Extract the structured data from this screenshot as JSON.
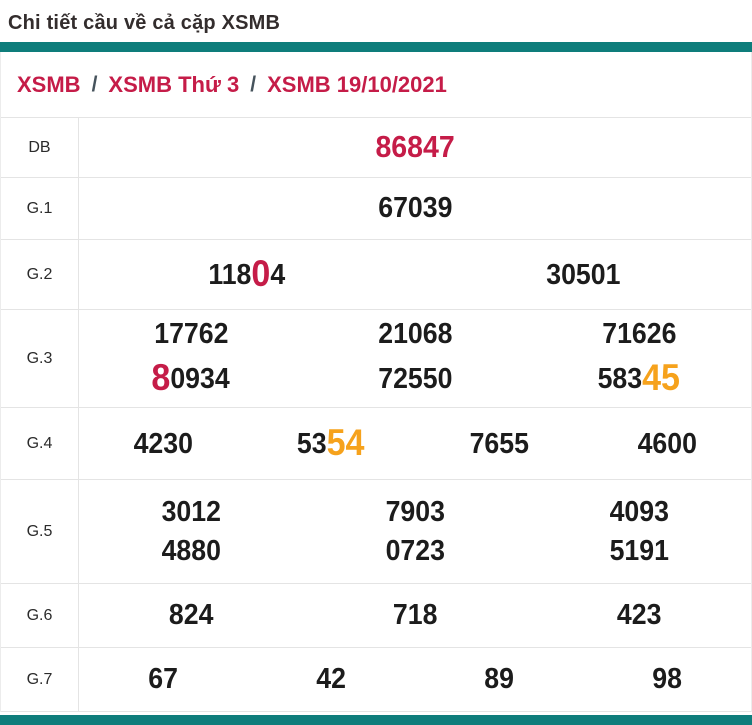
{
  "page_title": "Chi tiết cầu về cả cặp XSMB",
  "breadcrumb": {
    "separator": "/",
    "items": [
      {
        "label": "XSMB"
      },
      {
        "label": "XSMB Thứ 3"
      },
      {
        "label": "XSMB 19/10/2021"
      }
    ]
  },
  "colors": {
    "accent_teal": "#0e7d7b",
    "highlight_red": "#c51c48",
    "highlight_orange": "#f6a21c",
    "value_black": "#1c1c1c",
    "breadcrumb_red": "#c51c48",
    "separator_slate": "#46535c"
  },
  "results_table": {
    "rows": [
      {
        "key": "db",
        "label": "DB",
        "lines": [
          [
            [
              {
                "t": "86847",
                "c": "red"
              }
            ]
          ]
        ]
      },
      {
        "key": "g1",
        "label": "G.1",
        "lines": [
          [
            [
              {
                "t": "67039"
              }
            ]
          ]
        ]
      },
      {
        "key": "g2",
        "label": "G.2",
        "lines": [
          [
            [
              {
                "t": "118"
              },
              {
                "t": "0",
                "c": "red",
                "big": true
              },
              {
                "t": "4"
              }
            ],
            [
              {
                "t": "30501"
              }
            ]
          ]
        ]
      },
      {
        "key": "g3",
        "label": "G.3",
        "lines": [
          [
            [
              {
                "t": "17762"
              }
            ],
            [
              {
                "t": "21068"
              }
            ],
            [
              {
                "t": "71626"
              }
            ]
          ],
          [
            [
              {
                "t": "8",
                "c": "red",
                "big": true
              },
              {
                "t": "0934"
              }
            ],
            [
              {
                "t": "72550"
              }
            ],
            [
              {
                "t": "583"
              },
              {
                "t": "45",
                "c": "orange",
                "big": true
              }
            ]
          ]
        ]
      },
      {
        "key": "g4",
        "label": "G.4",
        "lines": [
          [
            [
              {
                "t": "4230"
              }
            ],
            [
              {
                "t": "53"
              },
              {
                "t": "54",
                "c": "orange",
                "big": true
              }
            ],
            [
              {
                "t": "7655"
              }
            ],
            [
              {
                "t": "4600"
              }
            ]
          ]
        ]
      },
      {
        "key": "g5",
        "label": "G.5",
        "lines": [
          [
            [
              {
                "t": "3012"
              }
            ],
            [
              {
                "t": "7903"
              }
            ],
            [
              {
                "t": "4093"
              }
            ]
          ],
          [
            [
              {
                "t": "4880"
              }
            ],
            [
              {
                "t": "0723"
              }
            ],
            [
              {
                "t": "5191"
              }
            ]
          ]
        ]
      },
      {
        "key": "g6",
        "label": "G.6",
        "lines": [
          [
            [
              {
                "t": "824"
              }
            ],
            [
              {
                "t": "718"
              }
            ],
            [
              {
                "t": "423"
              }
            ]
          ]
        ]
      },
      {
        "key": "g7",
        "label": "G.7",
        "lines": [
          [
            [
              {
                "t": "67"
              }
            ],
            [
              {
                "t": "42"
              }
            ],
            [
              {
                "t": "89"
              }
            ],
            [
              {
                "t": "98"
              }
            ]
          ]
        ]
      }
    ]
  }
}
